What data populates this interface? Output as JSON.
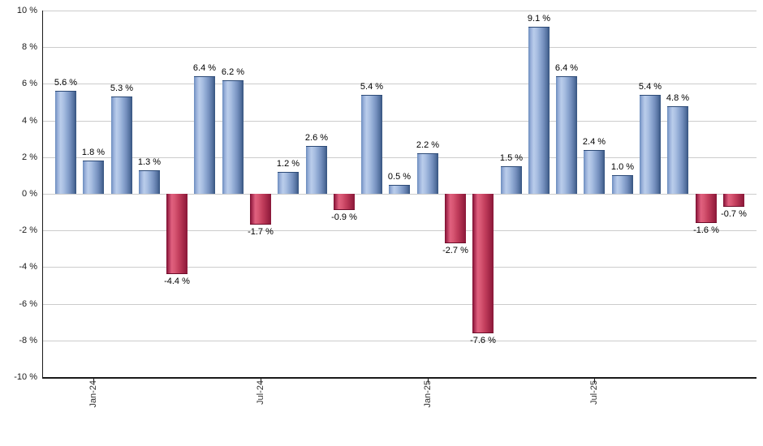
{
  "chart_data": {
    "type": "bar",
    "title": "",
    "y_axis": {
      "unit": "%",
      "min": -10,
      "max": 10,
      "step": 2,
      "tick_labels": [
        "10 %",
        "8 %",
        "6 %",
        "4 %",
        "2 %",
        "0 %",
        "-2 %",
        "-4 %",
        "-6 %",
        "-8 %",
        "-10 %"
      ],
      "grid": true
    },
    "x_axis": {
      "tick_labels": [
        "Jan-24",
        "Jul-24",
        "Jan-25",
        "Jul-25"
      ],
      "tick_bar_indices": [
        1,
        7,
        13,
        19
      ]
    },
    "values": [
      5.6,
      1.8,
      5.3,
      1.3,
      -4.4,
      6.4,
      6.2,
      -1.7,
      1.2,
      2.6,
      -0.9,
      5.4,
      0.5,
      2.2,
      -2.7,
      -7.6,
      1.5,
      9.1,
      6.4,
      2.4,
      1.0,
      5.4,
      4.8,
      -1.6,
      -0.7
    ],
    "bar_labels": [
      "5.6 %",
      "1.8 %",
      "5.3 %",
      "1.3 %",
      "-4.4 %",
      "6.4 %",
      "6.2 %",
      "-1.7 %",
      "1.2 %",
      "2.6 %",
      "-0.9 %",
      "5.4 %",
      "0.5 %",
      "2.2 %",
      "-2.7 %",
      "-7.6 %",
      "1.5 %",
      "9.1 %",
      "6.4 %",
      "2.4 %",
      "1.0 %",
      "5.4 %",
      "4.8 %",
      "-1.6 %",
      "-0.7 %"
    ],
    "colors": {
      "positive_bar_light": "#bacdeb",
      "positive_bar_dark": "#35537f",
      "negative_bar_light": "#e0607f",
      "negative_bar_dark": "#7a0e30",
      "gridline": "#cccccc",
      "axis": "#1a1a1a",
      "label_text": "#000000",
      "background": "#ffffff"
    },
    "legend": null
  }
}
